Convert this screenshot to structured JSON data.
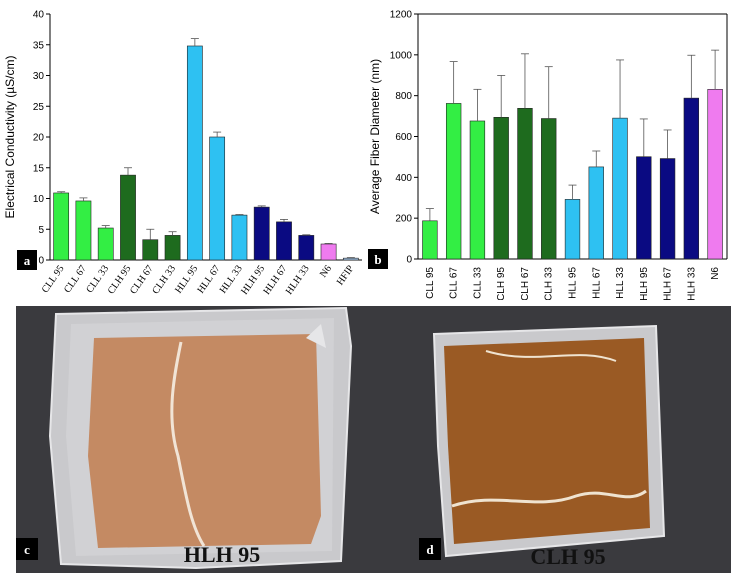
{
  "chart_data": [
    {
      "type": "bar",
      "panel": "a",
      "ylabel": "Electrical Conductivity (µS/cm)",
      "ylim": [
        0,
        40
      ],
      "yticks": [
        0,
        5,
        10,
        15,
        20,
        25,
        30,
        35,
        40
      ],
      "categories": [
        "CLL 95",
        "CLL 67",
        "CLL 33",
        "CLH 95",
        "CLH 67",
        "CLH 33",
        "HLL 95",
        "HLL 67",
        "HLL 33",
        "HLH 95",
        "HLH 67",
        "HLH 33",
        "N6",
        "HFIP"
      ],
      "values": [
        10.9,
        9.6,
        5.2,
        13.8,
        3.3,
        4.0,
        34.8,
        20.0,
        7.3,
        8.6,
        6.2,
        4.0,
        2.6,
        0.3
      ],
      "errors": [
        0.2,
        0.5,
        0.4,
        1.2,
        1.7,
        0.6,
        1.2,
        0.8,
        0.1,
        0.2,
        0.4,
        0.1,
        0.1,
        0.1
      ],
      "colors": [
        "#33ee44",
        "#33ee44",
        "#33ee44",
        "#1e6b1e",
        "#1e6b1e",
        "#1e6b1e",
        "#2ec1f2",
        "#2ec1f2",
        "#2ec1f2",
        "#0a0a82",
        "#0a0a82",
        "#0a0a82",
        "#ef7bef",
        "#a6c8ec"
      ]
    },
    {
      "type": "bar",
      "panel": "b",
      "ylabel": "Average Fiber Diameter (nm)",
      "ylim": [
        0,
        1200
      ],
      "yticks": [
        0,
        200,
        400,
        600,
        800,
        1000,
        1200
      ],
      "categories": [
        "CLL 95",
        "CLL 67",
        "CLL 33",
        "CLH 95",
        "CLH 67",
        "CLH 33",
        "HLL 95",
        "HLL 67",
        "HLL 33",
        "HLH 95",
        "HLH 67",
        "HLH 33",
        "N6"
      ],
      "values": [
        187,
        762,
        676,
        694,
        738,
        688,
        292,
        451,
        690,
        501,
        492,
        788,
        831
      ],
      "errors": [
        60,
        205,
        155,
        205,
        267,
        254,
        70,
        78,
        285,
        185,
        140,
        210,
        192
      ],
      "colors": [
        "#33ee44",
        "#33ee44",
        "#33ee44",
        "#1e6b1e",
        "#1e6b1e",
        "#1e6b1e",
        "#2ec1f2",
        "#2ec1f2",
        "#2ec1f2",
        "#0a0a82",
        "#0a0a82",
        "#0a0a82",
        "#ef7bef"
      ]
    }
  ],
  "panels": {
    "a": "a",
    "b": "b",
    "c": "c",
    "d": "d"
  },
  "photos": {
    "left_caption": "HLH 95",
    "right_caption": "CLH 95"
  },
  "colors": {
    "bar_outline": "#222222",
    "error_bar": "#555555",
    "photo_background": "#3a3a3e",
    "foil": "#c9c9cc",
    "membrane_hlh": "#c48a63",
    "membrane_clh": "#9a5a24"
  }
}
